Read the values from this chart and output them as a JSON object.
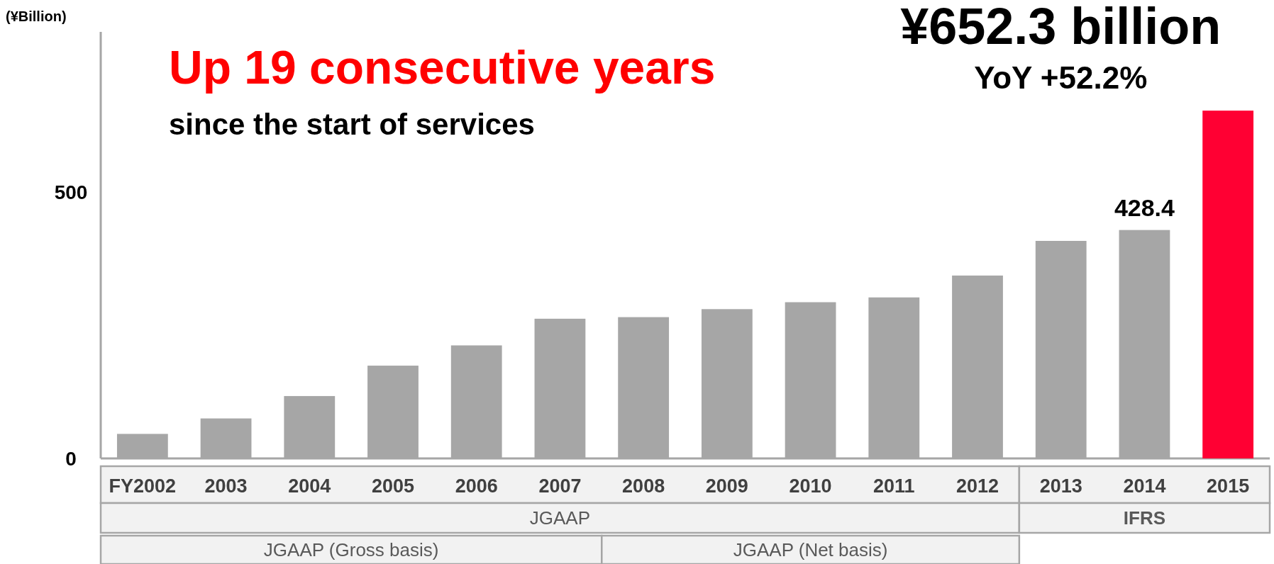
{
  "chart_data": {
    "type": "bar",
    "title": "Up 19 consecutive years",
    "subtitle": "since the start of services",
    "ylabel": "(¥Billion)",
    "categories": [
      "FY2002",
      "2003",
      "2004",
      "2005",
      "2006",
      "2007",
      "2008",
      "2009",
      "2010",
      "2011",
      "2012",
      "2013",
      "2014",
      "2015"
    ],
    "values": [
      46,
      75,
      117,
      174,
      212,
      262,
      265,
      280,
      293,
      302,
      343,
      408,
      428.4,
      652.3
    ],
    "colors": [
      "#a6a6a6",
      "#a6a6a6",
      "#a6a6a6",
      "#a6a6a6",
      "#a6a6a6",
      "#a6a6a6",
      "#a6a6a6",
      "#a6a6a6",
      "#a6a6a6",
      "#a6a6a6",
      "#a6a6a6",
      "#a6a6a6",
      "#a6a6a6",
      "#ff0033"
    ],
    "value_labels": [
      null,
      null,
      null,
      null,
      null,
      null,
      null,
      null,
      null,
      null,
      null,
      null,
      "428.4",
      null
    ],
    "annotations": [
      "¥652.3 billion",
      "YoY +52.2%",
      "JGAAP",
      "IFRS",
      "JGAAP (Gross basis)",
      "JGAAP (Net basis)"
    ],
    "ylim": [
      0,
      800
    ],
    "yticks": [
      0,
      500
    ],
    "grid": false
  }
}
